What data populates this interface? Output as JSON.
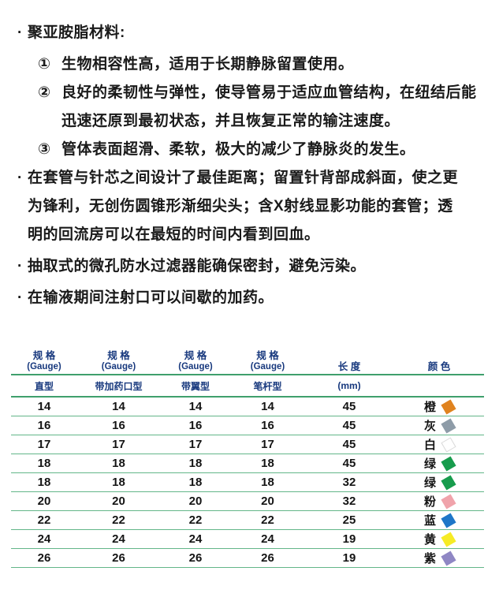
{
  "content": {
    "bullet_marker": "·",
    "bullets": [
      {
        "text": "聚亚胺脂材料:",
        "items": [
          {
            "marker": "①",
            "text": "生物相容性高，适用于长期静脉留置使用。"
          },
          {
            "marker": "②",
            "text": "良好的柔韧性与弹性，使导管易于适应血管结构，在纽结后能迅速还原到最初状态，并且恢复正常的输注速度。"
          },
          {
            "marker": "③",
            "text": "管体表面超滑、柔软，极大的减少了静脉炎的发生。"
          }
        ]
      },
      {
        "text": "在套管与针芯之间设计了最佳距离；留置针背部成斜面，使之更为锋利，无创伤圆锥形渐细尖头；含X射线显影功能的套管；透明的回流房可以在最短的时间内看到回血。"
      },
      {
        "text": "抽取式的微孔防水过滤器能确保密封，避免污染。"
      },
      {
        "text": "在输液期间注射口可以间歇的加药。"
      }
    ]
  },
  "table": {
    "header": {
      "gauge_label": "规 格",
      "gauge_sub": "(Gauge)",
      "length_label": "长 度",
      "length_unit": "(mm)",
      "color_label": "颜 色",
      "types": [
        "直型",
        "带加药口型",
        "带翼型",
        "笔杆型"
      ]
    },
    "rows": [
      {
        "gauges": [
          "14",
          "14",
          "14",
          "14"
        ],
        "length": "45",
        "color_name": "橙",
        "color_hex": "#E0831F"
      },
      {
        "gauges": [
          "16",
          "16",
          "16",
          "16"
        ],
        "length": "45",
        "color_name": "灰",
        "color_hex": "#8E9CA8"
      },
      {
        "gauges": [
          "17",
          "17",
          "17",
          "17"
        ],
        "length": "45",
        "color_name": "白",
        "color_hex": "#FFFFFF"
      },
      {
        "gauges": [
          "18",
          "18",
          "18",
          "18"
        ],
        "length": "45",
        "color_name": "绿",
        "color_hex": "#179C4D"
      },
      {
        "gauges": [
          "18",
          "18",
          "18",
          "18"
        ],
        "length": "32",
        "color_name": "绿",
        "color_hex": "#179C4D"
      },
      {
        "gauges": [
          "20",
          "20",
          "20",
          "20"
        ],
        "length": "32",
        "color_name": "粉",
        "color_hex": "#F0A3AB"
      },
      {
        "gauges": [
          "22",
          "22",
          "22",
          "22"
        ],
        "length": "25",
        "color_name": "蓝",
        "color_hex": "#1E76C8"
      },
      {
        "gauges": [
          "24",
          "24",
          "24",
          "24"
        ],
        "length": "19",
        "color_name": "黄",
        "color_hex": "#F6EB26"
      },
      {
        "gauges": [
          "26",
          "26",
          "26",
          "26"
        ],
        "length": "19",
        "color_name": "紫",
        "color_hex": "#8F87C4"
      }
    ]
  },
  "colors": {
    "accent_navy": "#18397E",
    "line_green": "#3F9F6C",
    "row_line_green": "#63B689",
    "text_black": "#1A1A1A"
  }
}
